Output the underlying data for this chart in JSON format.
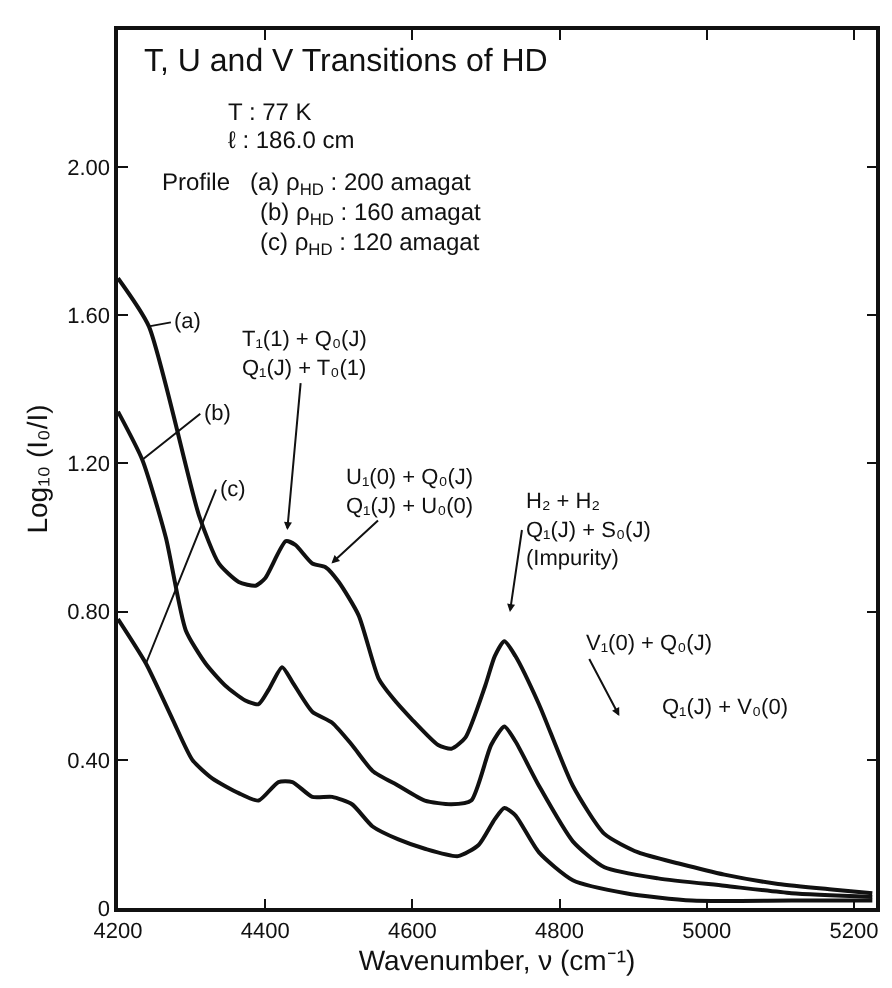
{
  "chart_data": {
    "type": "line",
    "title": "T, U and V Transitions of HD",
    "xlabel": "Wavenumber, ν (cm⁻¹)",
    "ylabel": "Log₁₀ (I₀/I)",
    "xlim": [
      4200,
      5230
    ],
    "ylim": [
      0,
      2.37
    ],
    "xticks": [
      4200,
      4400,
      4600,
      4800,
      5000,
      5200
    ],
    "yticks": [
      0,
      {
        "value": 0.4,
        "label": "0.40"
      },
      {
        "value": 0.8,
        "label": "0.80"
      },
      {
        "value": 1.2,
        "label": "1.20"
      },
      {
        "value": 1.6,
        "label": "1.60"
      },
      {
        "value": 2.0,
        "label": "2.00"
      }
    ],
    "grid": false,
    "legend": false,
    "marker": "none",
    "line_style": "solid",
    "series": [
      {
        "color": "#111111",
        "x": [
          4200,
          4242,
          4310,
          4337,
          4364,
          4387,
          4400,
          4428,
          4441,
          4464,
          4482,
          4500,
          4527,
          4554,
          4572,
          4599,
          4635,
          4653,
          4672,
          4699,
          4712,
          4725,
          4740,
          4772,
          4818,
          4861,
          4907,
          4962,
          5024,
          5097,
          5170,
          5225
        ],
        "values": [
          1.7,
          1.57,
          1.06,
          0.93,
          0.88,
          0.87,
          0.89,
          0.99,
          0.98,
          0.93,
          0.92,
          0.88,
          0.79,
          0.62,
          0.57,
          0.51,
          0.44,
          0.43,
          0.46,
          0.6,
          0.68,
          0.72,
          0.68,
          0.55,
          0.33,
          0.2,
          0.15,
          0.12,
          0.09,
          0.065,
          0.05,
          0.04
        ]
      },
      {
        "color": "#111111",
        "x": [
          4200,
          4233,
          4265,
          4292,
          4319,
          4346,
          4373,
          4391,
          4405,
          4423,
          4437,
          4464,
          4491,
          4518,
          4546,
          4581,
          4617,
          4653,
          4680,
          4707,
          4725,
          4740,
          4772,
          4818,
          4861,
          4934,
          5024,
          5115,
          5225
        ],
        "values": [
          1.34,
          1.21,
          1.0,
          0.75,
          0.66,
          0.6,
          0.56,
          0.55,
          0.59,
          0.65,
          0.61,
          0.53,
          0.5,
          0.44,
          0.37,
          0.33,
          0.29,
          0.28,
          0.29,
          0.44,
          0.49,
          0.45,
          0.33,
          0.18,
          0.11,
          0.08,
          0.06,
          0.04,
          0.03
        ]
      },
      {
        "color": "#111111",
        "x": [
          4200,
          4238,
          4274,
          4301,
          4328,
          4364,
          4391,
          4418,
          4437,
          4464,
          4491,
          4518,
          4546,
          4581,
          4617,
          4662,
          4690,
          4712,
          4725,
          4740,
          4772,
          4818,
          4890,
          4980,
          5115,
          5225
        ],
        "values": [
          0.78,
          0.66,
          0.51,
          0.4,
          0.35,
          0.31,
          0.29,
          0.34,
          0.34,
          0.3,
          0.3,
          0.28,
          0.22,
          0.185,
          0.16,
          0.14,
          0.17,
          0.24,
          0.27,
          0.25,
          0.15,
          0.075,
          0.04,
          0.02,
          0.02,
          0.02
        ]
      }
    ],
    "annotations": [
      "T : 77 K",
      "ℓ : 186.0 cm",
      "Profile   (a) ρ$_{HD}$ : 200 amagat",
      "(b) ρ$_{HD}$ : 160 amagat",
      "(c) ρ$_{HD}$ : 120 amagat",
      {
        "text": "(a)",
        "x": 4242,
        "y": 1.57
      },
      {
        "text": "(b)",
        "x": 4233,
        "y": 1.21
      },
      {
        "text": "(c)",
        "x": 4238,
        "y": 0.66
      },
      {
        "text": "T₁(1) + Q₀(J)\nQ₁(J) + T₀(1)",
        "x": 4430,
        "y": 1.02
      },
      {
        "text": "U₁(0) + Q₀(J)\nQ₁(J) + U₀(0)",
        "x": 4490,
        "y": 0.93
      },
      "H₂ + H₂\nQ₁(J) + S₀(J)\n(Impurity)",
      "V₁(0) + Q₀(J)",
      "Q₁(J) + V₀(0)"
    ]
  }
}
